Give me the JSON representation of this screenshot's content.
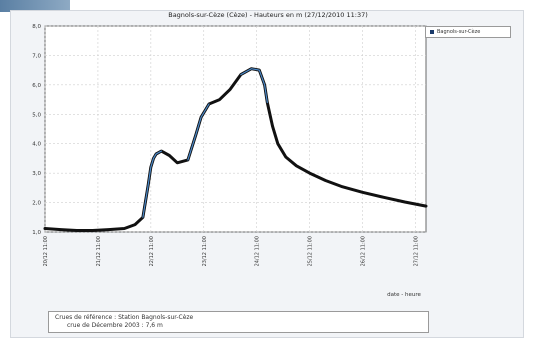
{
  "chart_data": {
    "type": "line",
    "title": "Bagnols-sur-Cèze (Cèze) - Hauteurs en m (27/12/2010 11:37)",
    "xlabel": "date - heure",
    "ylabel": "",
    "ylim": [
      1.0,
      8.0
    ],
    "y_ticks": [
      "1,0",
      "2,0",
      "3,0",
      "4,0",
      "5,0",
      "6,0",
      "7,0",
      "8,0"
    ],
    "x_ticks": [
      "20/12 11:00",
      "21/12 11:00",
      "22/12 11:00",
      "23/12 11:00",
      "24/12 11:00",
      "25/12 11:00",
      "26/12 11:00",
      "27/12 11:00"
    ],
    "x_tick_index": [
      0,
      1,
      2,
      3,
      4,
      5,
      6,
      7
    ],
    "legend": "Bagnols-sur-Cèze",
    "legend_position": "top-right",
    "grid": true,
    "series": [
      {
        "name": "Bagnols-sur-Cèze",
        "color": "#111111",
        "x": [
          0.0,
          0.3,
          0.6,
          0.9,
          1.2,
          1.5,
          1.7,
          1.85,
          1.95,
          2.0,
          2.05,
          2.1,
          2.2,
          2.35,
          2.5,
          2.7,
          2.85,
          2.95,
          3.1,
          3.3,
          3.5,
          3.7,
          3.9,
          4.05,
          4.15,
          4.2,
          4.3,
          4.4,
          4.55,
          4.75,
          5.0,
          5.3,
          5.6,
          6.0,
          6.4,
          6.8,
          7.2
        ],
        "y": [
          1.12,
          1.08,
          1.05,
          1.05,
          1.08,
          1.12,
          1.25,
          1.5,
          2.6,
          3.2,
          3.5,
          3.65,
          3.75,
          3.6,
          3.35,
          3.45,
          4.3,
          4.9,
          5.35,
          5.5,
          5.85,
          6.35,
          6.55,
          6.5,
          6.0,
          5.4,
          4.6,
          4.0,
          3.55,
          3.25,
          3.0,
          2.75,
          2.55,
          2.35,
          2.18,
          2.02,
          1.88
        ]
      }
    ]
  },
  "note": {
    "line1": "Crues de référence : Station Bagnols-sur-Cèze",
    "line2": "crue de Décembre 2003 : 7,6 m"
  }
}
